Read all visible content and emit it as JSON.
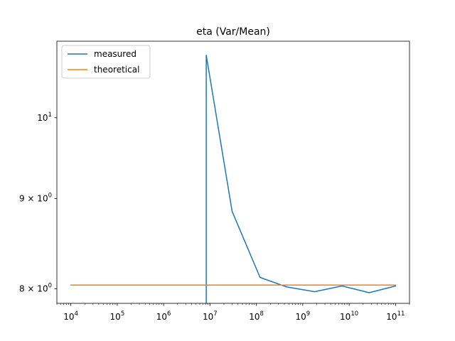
{
  "chart_data": {
    "type": "line",
    "title": "eta (Var/Mean)",
    "xlabel": "",
    "ylabel": "",
    "xscale": "log",
    "yscale": "log",
    "xlim": [
      5000,
      200000000000
    ],
    "ylim": [
      7.85,
      11.05
    ],
    "x_ticks": [
      {
        "value": 10000,
        "base": "10",
        "exp": "4"
      },
      {
        "value": 100000,
        "base": "10",
        "exp": "5"
      },
      {
        "value": 1000000,
        "base": "10",
        "exp": "6"
      },
      {
        "value": 10000000,
        "base": "10",
        "exp": "7"
      },
      {
        "value": 100000000,
        "base": "10",
        "exp": "8"
      },
      {
        "value": 1000000000,
        "base": "10",
        "exp": "9"
      },
      {
        "value": 10000000000,
        "base": "10",
        "exp": "10"
      },
      {
        "value": 100000000000,
        "base": "10",
        "exp": "11"
      }
    ],
    "y_ticks": [
      {
        "value": 8,
        "mant": "8",
        "base": "10",
        "exp": "0",
        "style": "mant"
      },
      {
        "value": 9,
        "mant": "9",
        "base": "10",
        "exp": "0",
        "style": "mant"
      },
      {
        "value": 10,
        "mant": "",
        "base": "10",
        "exp": "1",
        "style": "pow"
      }
    ],
    "grid": false,
    "legend_position": "top-left",
    "series": [
      {
        "name": "measured",
        "color": "#1f77b4",
        "x": [
          8300000,
          8300000,
          30000000,
          120000000,
          450000000,
          1800000000,
          7000000000,
          27000000000,
          100000000000
        ],
        "y": [
          7.85,
          10.85,
          8.85,
          8.12,
          8.02,
          7.97,
          8.03,
          7.96,
          8.03
        ]
      },
      {
        "name": "theoretical",
        "color": "#ff7f0e",
        "x": [
          10000,
          100000000000
        ],
        "y": [
          8.04,
          8.04
        ]
      }
    ]
  }
}
